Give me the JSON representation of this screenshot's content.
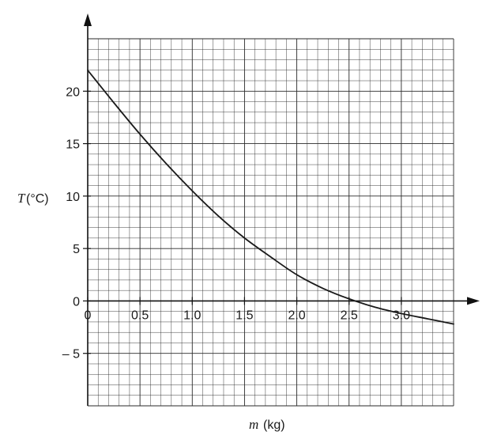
{
  "chart_data": {
    "type": "line",
    "title": "",
    "xlabel_var": "m",
    "xlabel_unit": "(kg)",
    "ylabel_var": "T",
    "ylabel_unit": "(°C)",
    "xlim": [
      0,
      3.5
    ],
    "ylim": [
      -10,
      25
    ],
    "grid": true,
    "x_minor_step": 0.1,
    "y_minor_step": 1,
    "x_ticks": [
      {
        "value": 0,
        "label": "0"
      },
      {
        "value": 0.5,
        "label": "0.5"
      },
      {
        "value": 1.0,
        "label": "1.0"
      },
      {
        "value": 1.5,
        "label": "1.5"
      },
      {
        "value": 2.0,
        "label": "2.0"
      },
      {
        "value": 2.5,
        "label": "2.5"
      },
      {
        "value": 3.0,
        "label": "3.0"
      }
    ],
    "y_ticks": [
      {
        "value": 20,
        "label": "20"
      },
      {
        "value": 15,
        "label": "15"
      },
      {
        "value": 10,
        "label": "10"
      },
      {
        "value": 5,
        "label": "5"
      },
      {
        "value": 0,
        "label": "0"
      },
      {
        "value": -5,
        "label": "– 5"
      }
    ],
    "series": [
      {
        "color": "#1a1a1a",
        "x": [
          0,
          0.25,
          0.5,
          0.75,
          1.0,
          1.25,
          1.5,
          1.75,
          2.0,
          2.25,
          2.5,
          2.75,
          3.0,
          3.25,
          3.5
        ],
        "y": [
          22,
          18.9,
          15.9,
          13.1,
          10.5,
          8.1,
          6.0,
          4.2,
          2.5,
          1.2,
          0.2,
          -0.6,
          -1.2,
          -1.7,
          -2.2
        ]
      }
    ]
  }
}
